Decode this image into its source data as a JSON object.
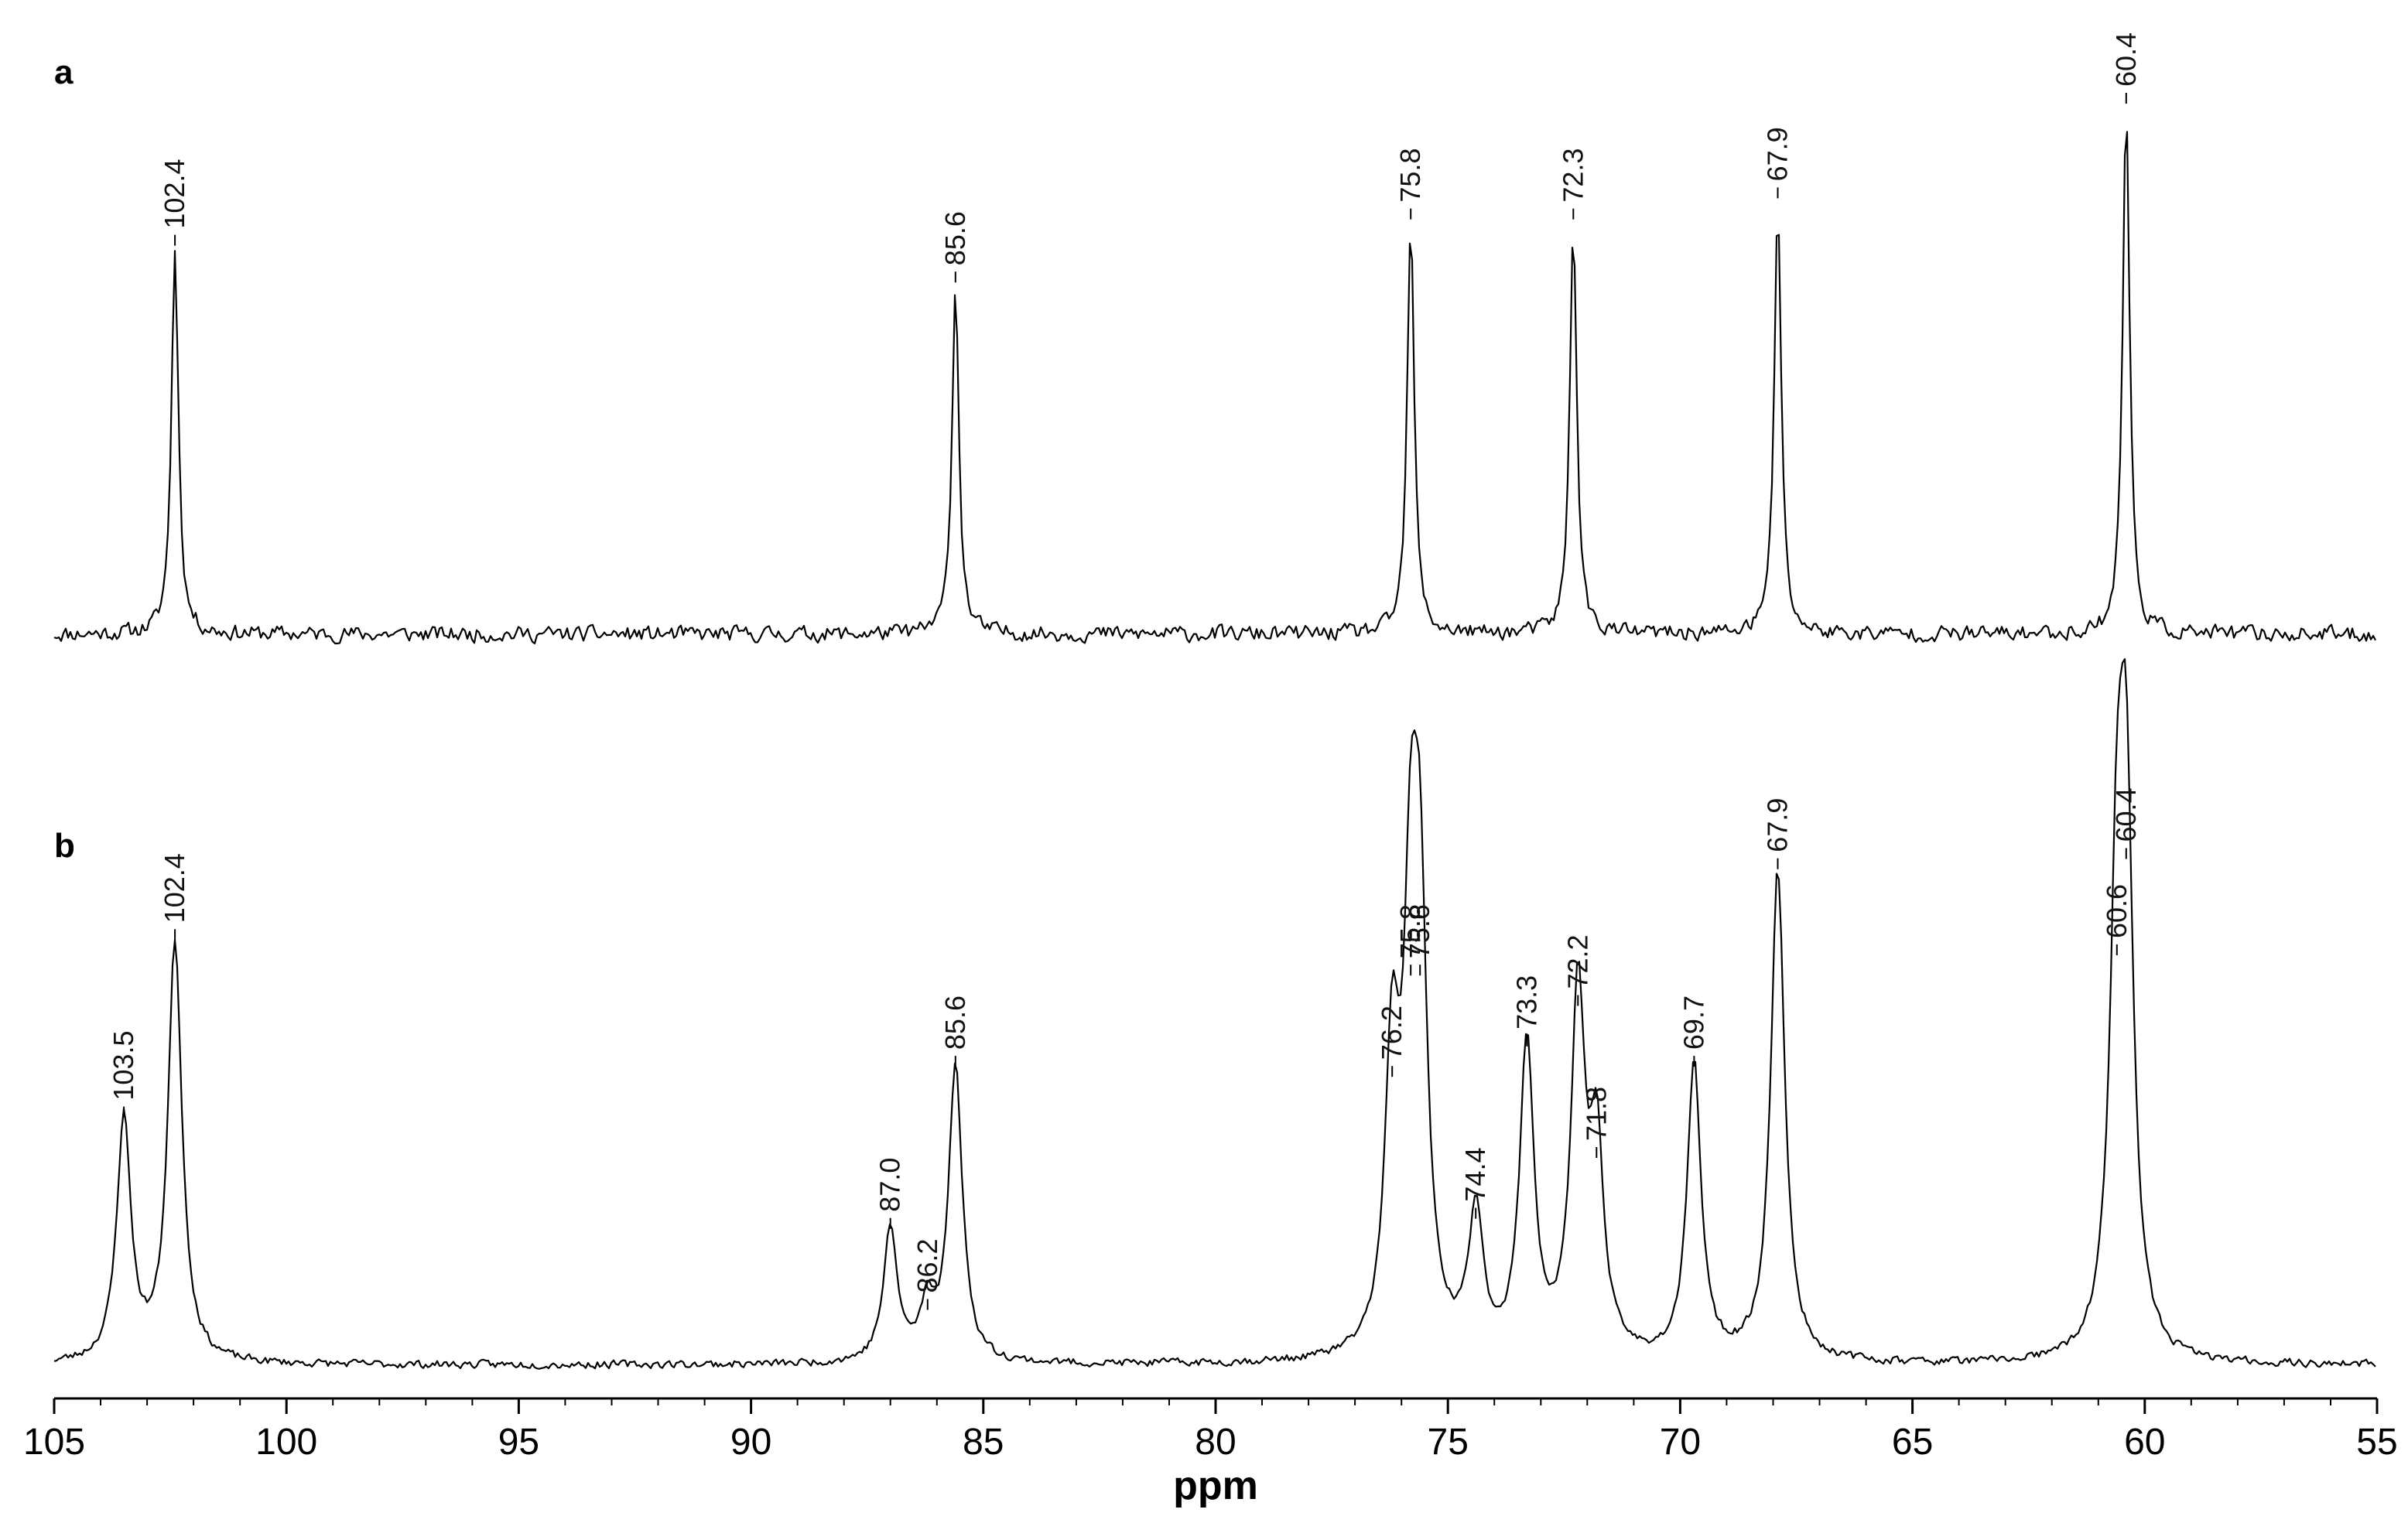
{
  "chart_data": [
    {
      "type": "line",
      "panel": "a",
      "xlabel": "ppm",
      "xlim": [
        105,
        55
      ],
      "x_reversed": true,
      "grid": false,
      "peaks": [
        {
          "ppm": 102.4,
          "label": "102.4",
          "rel_height": 0.73
        },
        {
          "ppm": 85.6,
          "label": "85.6",
          "rel_height": 0.66
        },
        {
          "ppm": 75.8,
          "label": "75.8",
          "rel_height": 0.78
        },
        {
          "ppm": 72.3,
          "label": "72.3",
          "rel_height": 0.78
        },
        {
          "ppm": 67.9,
          "label": "67.9",
          "rel_height": 0.82
        },
        {
          "ppm": 60.4,
          "label": "60.4",
          "rel_height": 1.0
        }
      ]
    },
    {
      "type": "line",
      "panel": "b",
      "xlabel": "ppm",
      "xlim": [
        105,
        55
      ],
      "x_reversed": true,
      "grid": false,
      "peaks": [
        {
          "ppm": 103.5,
          "label": "103.5",
          "rel_height": 0.48
        },
        {
          "ppm": 102.4,
          "label": "102.4",
          "rel_height": 0.83
        },
        {
          "ppm": 87.0,
          "label": "87.0",
          "rel_height": 0.26
        },
        {
          "ppm": 86.2,
          "label": "86.2",
          "rel_height": 0.1
        },
        {
          "ppm": 85.6,
          "label": "85.6",
          "rel_height": 0.58
        },
        {
          "ppm": 76.2,
          "label": "76.2",
          "rel_height": 0.56
        },
        {
          "ppm": 75.8,
          "label": "75.8",
          "rel_height": 0.76
        },
        {
          "ppm": 75.6,
          "label": "75.6",
          "rel_height": 0.76
        },
        {
          "ppm": 74.4,
          "label": "74.4",
          "rel_height": 0.28
        },
        {
          "ppm": 73.3,
          "label": "73.3",
          "rel_height": 0.62
        },
        {
          "ppm": 72.2,
          "label": "72.2",
          "rel_height": 0.7
        },
        {
          "ppm": 71.8,
          "label": "71.8",
          "rel_height": 0.4
        },
        {
          "ppm": 69.7,
          "label": "69.7",
          "rel_height": 0.58
        },
        {
          "ppm": 67.9,
          "label": "67.9",
          "rel_height": 0.97
        },
        {
          "ppm": 60.6,
          "label": "60.6",
          "rel_height": 0.8
        },
        {
          "ppm": 60.4,
          "label": "60.4",
          "rel_height": 0.99
        }
      ]
    }
  ],
  "axis": {
    "title": "ppm",
    "ticks": [
      105,
      100,
      95,
      90,
      85,
      80,
      75,
      70,
      65,
      60,
      55
    ],
    "tick_labels": [
      "105",
      "100",
      "95",
      "90",
      "85",
      "80",
      "75",
      "70",
      "65",
      "60",
      "55"
    ]
  }
}
